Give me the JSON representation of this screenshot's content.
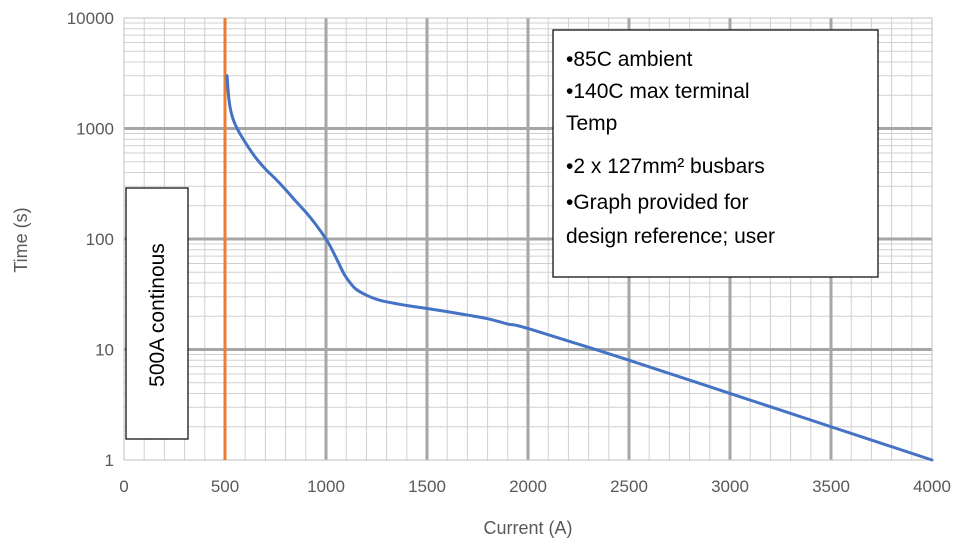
{
  "chart_data": {
    "type": "line",
    "title": "",
    "xlabel": "Current (A)",
    "ylabel": "Time (s)",
    "xlim": [
      0,
      4000
    ],
    "ylim": [
      1,
      10000
    ],
    "yscale": "log",
    "grid": true,
    "x_ticks": [
      "0",
      "500",
      "1000",
      "1500",
      "2000",
      "2500",
      "3000",
      "3500",
      "4000"
    ],
    "y_ticks": [
      "1",
      "10",
      "100",
      "1000",
      "10000"
    ],
    "series": [
      {
        "color": "#4472C4",
        "points": [
          [
            510,
            3000
          ],
          [
            520,
            1800
          ],
          [
            535,
            1300
          ],
          [
            560,
            1000
          ],
          [
            600,
            750
          ],
          [
            650,
            550
          ],
          [
            700,
            430
          ],
          [
            750,
            350
          ],
          [
            800,
            280
          ],
          [
            850,
            220
          ],
          [
            900,
            175
          ],
          [
            950,
            135
          ],
          [
            1000,
            100
          ],
          [
            1030,
            80
          ],
          [
            1060,
            62
          ],
          [
            1090,
            48
          ],
          [
            1120,
            40
          ],
          [
            1150,
            35
          ],
          [
            1200,
            31
          ],
          [
            1250,
            28.5
          ],
          [
            1300,
            27
          ],
          [
            1400,
            25
          ],
          [
            1500,
            23.5
          ],
          [
            1600,
            22
          ],
          [
            1700,
            20.5
          ],
          [
            1800,
            19
          ],
          [
            1900,
            17
          ],
          [
            2000,
            15.5
          ],
          [
            2500,
            8
          ],
          [
            3000,
            4
          ],
          [
            3500,
            2
          ],
          [
            4000,
            1
          ]
        ]
      }
    ],
    "reference_line": {
      "x": 500,
      "color": "#ED7D31",
      "label": "500A continous"
    },
    "notes": [
      "•85C ambient",
      "•140C max terminal",
      "Temp",
      "•2 x 127mm² busbars",
      "•Graph provided for",
      "design reference; user"
    ]
  }
}
